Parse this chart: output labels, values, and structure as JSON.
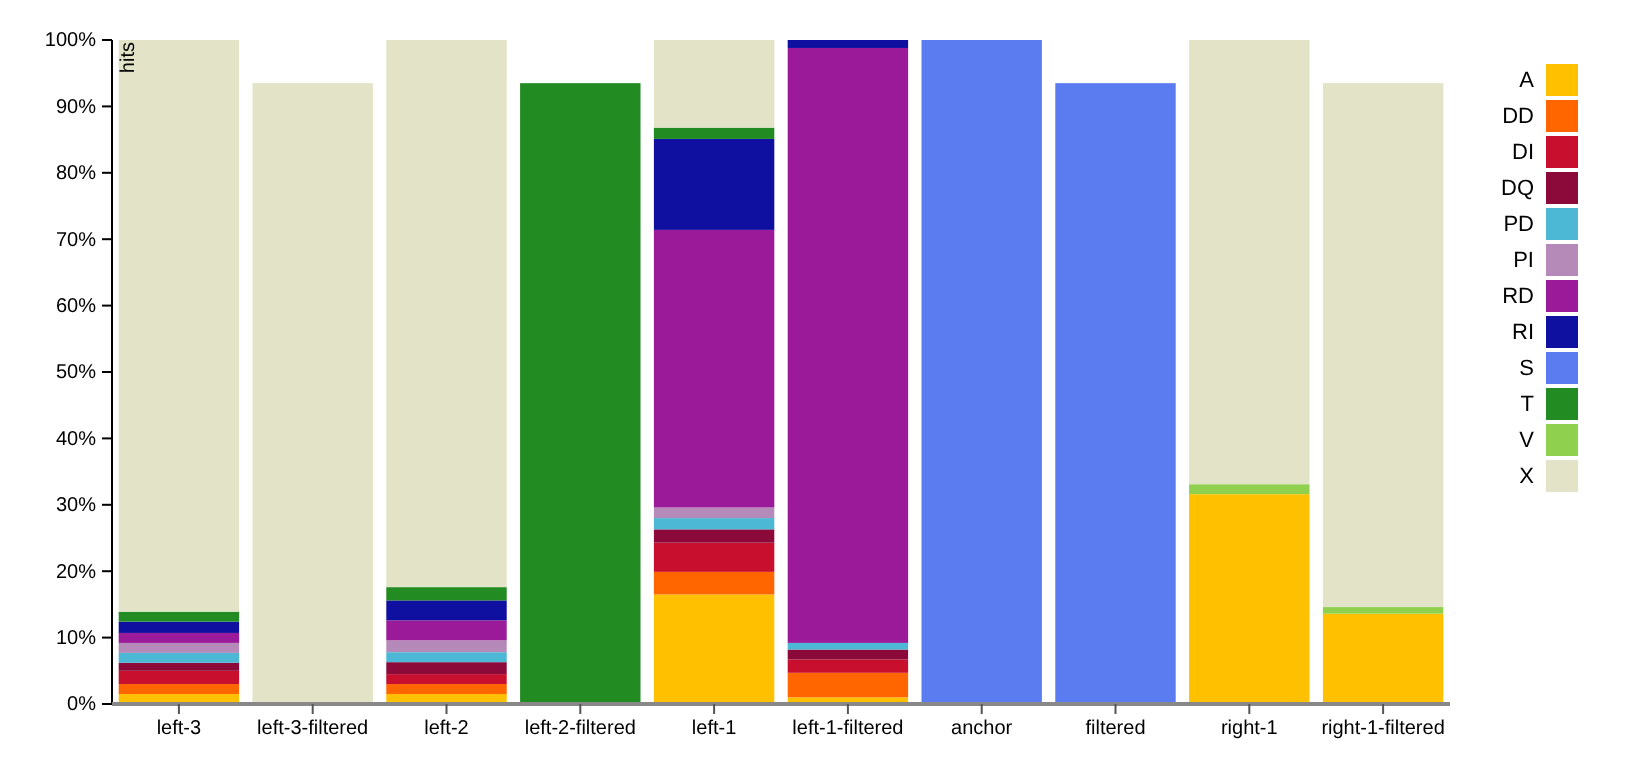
{
  "chart_data": {
    "type": "bar",
    "stacked": true,
    "ylabel": "hits",
    "categories": [
      "left-3",
      "left-3-filtered",
      "left-2",
      "left-2-filtered",
      "left-1",
      "left-1-filtered",
      "anchor",
      "filtered",
      "right-1",
      "right-1-filtered"
    ],
    "ylim": [
      0,
      100
    ],
    "yticks": [
      {
        "value": 0,
        "label": "0%"
      },
      {
        "value": 10,
        "label": "10%"
      },
      {
        "value": 20,
        "label": "20%"
      },
      {
        "value": 30,
        "label": "30%"
      },
      {
        "value": 40,
        "label": "40%"
      },
      {
        "value": 50,
        "label": "50%"
      },
      {
        "value": 60,
        "label": "60%"
      },
      {
        "value": 70,
        "label": "70%"
      },
      {
        "value": 80,
        "label": "80%"
      },
      {
        "value": 90,
        "label": "90%"
      },
      {
        "value": 100,
        "label": "100%"
      }
    ],
    "legend": "right",
    "grid": false,
    "series": [
      {
        "name": "A",
        "color": "#ffc000",
        "values": [
          1.5,
          null,
          1.5,
          null,
          16.5,
          1,
          null,
          null,
          31.6,
          13.6
        ]
      },
      {
        "name": "DD",
        "color": "#ff6600",
        "values": [
          1.5,
          null,
          1.5,
          null,
          3.4,
          3.7,
          null,
          null,
          null,
          null
        ]
      },
      {
        "name": "DI",
        "color": "#c8102e",
        "values": [
          2,
          null,
          1.5,
          null,
          4.4,
          2,
          null,
          null,
          null,
          null
        ]
      },
      {
        "name": "DQ",
        "color": "#8b0a3a",
        "values": [
          1.2,
          null,
          1.8,
          null,
          2,
          1.5,
          null,
          null,
          null,
          null
        ]
      },
      {
        "name": "PD",
        "color": "#4db8d6",
        "values": [
          1.5,
          null,
          1.5,
          null,
          1.7,
          1,
          null,
          null,
          null,
          null
        ]
      },
      {
        "name": "PI",
        "color": "#b58ab8",
        "values": [
          1.5,
          null,
          1.8,
          null,
          1.6,
          null,
          null,
          null,
          null,
          null
        ]
      },
      {
        "name": "RD",
        "color": "#9a1a9a",
        "values": [
          1.5,
          null,
          3,
          null,
          41.8,
          89.6,
          null,
          null,
          null,
          null
        ]
      },
      {
        "name": "RI",
        "color": "#1010a0",
        "values": [
          1.7,
          null,
          3,
          null,
          13.7,
          1.2,
          null,
          null,
          null,
          null
        ]
      },
      {
        "name": "S",
        "color": "#5b7bf0",
        "values": [
          null,
          null,
          null,
          null,
          null,
          null,
          100,
          93.5,
          null,
          null
        ]
      },
      {
        "name": "T",
        "color": "#228b22",
        "values": [
          1.5,
          null,
          2,
          93.5,
          1.7,
          null,
          null,
          null,
          null,
          null
        ]
      },
      {
        "name": "V",
        "color": "#8fd14f",
        "values": [
          null,
          null,
          null,
          null,
          null,
          null,
          null,
          null,
          1.5,
          1
        ]
      },
      {
        "name": "X",
        "color": "#e3e3c8",
        "values": [
          86.1,
          93.5,
          82.4,
          null,
          13.2,
          null,
          null,
          null,
          66.9,
          78.9
        ]
      }
    ]
  }
}
